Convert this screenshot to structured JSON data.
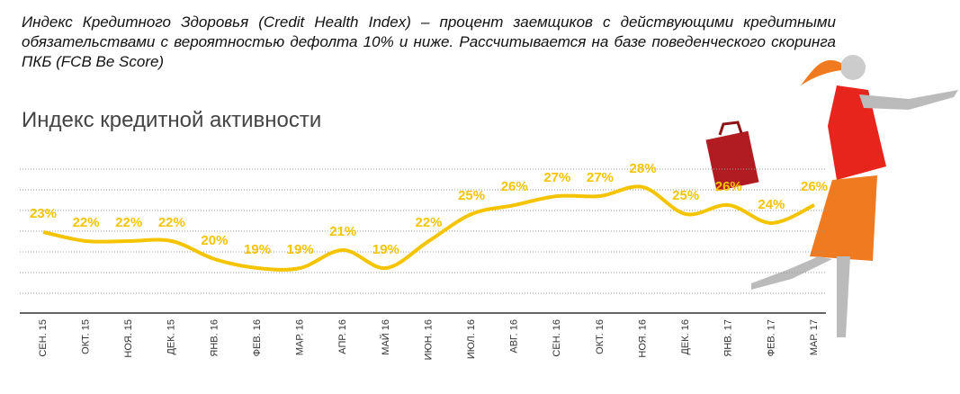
{
  "description": "Индекс Кредитного Здоровья (Credit Health Index) – процент заемщиков с действующими кредитными обязательствами с вероятностью дефолта 10% и ниже. Рассчитывается на базе поведенческого скоринга ПКБ (FCB Be Score)",
  "chart_data": {
    "type": "line",
    "title": "Индекс кредитной активности",
    "categories": [
      "СЕН. 15",
      "ОКТ. 15",
      "НОЯ. 15",
      "ДЕК. 15",
      "ЯНВ. 16",
      "ФЕВ. 16",
      "МАР. 16",
      "АПР. 16",
      "МАЙ 16",
      "ИЮН. 16",
      "ИЮЛ. 16",
      "АВГ. 16",
      "СЕН. 16",
      "ОКТ. 16",
      "НОЯ. 16",
      "ДЕК. 16",
      "ЯНВ. 17",
      "ФЕВ. 17",
      "МАР. 17"
    ],
    "values": [
      23,
      22,
      22,
      22,
      20,
      19,
      19,
      21,
      19,
      22,
      25,
      26,
      27,
      27,
      28,
      25,
      26,
      24,
      26
    ],
    "value_labels": [
      "23%",
      "22%",
      "22%",
      "22%",
      "20%",
      "19%",
      "19%",
      "21%",
      "19%",
      "22%",
      "25%",
      "26%",
      "27%",
      "27%",
      "28%",
      "25%",
      "26%",
      "24%",
      "26%"
    ],
    "color": "#f5c400",
    "ylim": [
      14,
      30
    ]
  }
}
